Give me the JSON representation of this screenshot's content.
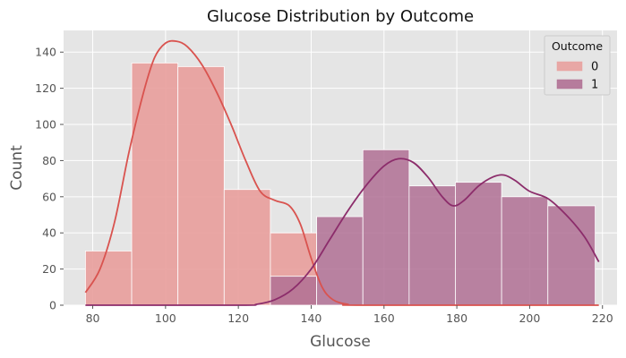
{
  "chart_data": {
    "type": "histogram",
    "title": "Glucose Distribution by Outcome",
    "xlabel": "Glucose",
    "ylabel": "Count",
    "xlim": [
      72,
      224
    ],
    "ylim": [
      0,
      152
    ],
    "xticks": [
      80,
      100,
      120,
      140,
      160,
      180,
      200,
      220
    ],
    "yticks": [
      0,
      20,
      40,
      60,
      80,
      100,
      120,
      140
    ],
    "grid": true,
    "legend": {
      "title": "Outcome",
      "position": "top-right"
    },
    "bin_edges": [
      78,
      90.7,
      103.4,
      116.1,
      128.8,
      141.5,
      154.2,
      166.9,
      179.6,
      192.3,
      205,
      218
    ],
    "series": [
      {
        "name": "0",
        "color": "#d9534f",
        "fill_color": "#e8a09d",
        "counts": [
          30,
          134,
          132,
          64,
          40,
          0,
          0,
          0,
          0,
          0,
          0
        ],
        "kde": [
          [
            78,
            7
          ],
          [
            82,
            20
          ],
          [
            86,
            46
          ],
          [
            90,
            85
          ],
          [
            94,
            118
          ],
          [
            97,
            137
          ],
          [
            100,
            145
          ],
          [
            103,
            146
          ],
          [
            106,
            143
          ],
          [
            110,
            133
          ],
          [
            114,
            118
          ],
          [
            118,
            100
          ],
          [
            122,
            80
          ],
          [
            126,
            63
          ],
          [
            130,
            58
          ],
          [
            134,
            55
          ],
          [
            137,
            45
          ],
          [
            140,
            26
          ],
          [
            143,
            10
          ],
          [
            146,
            3
          ],
          [
            150,
            0.5
          ],
          [
            155,
            0
          ],
          [
            219,
            0
          ]
        ]
      },
      {
        "name": "1",
        "color": "#8c2d6b",
        "fill_color": "#b07094",
        "counts": [
          0,
          0,
          0,
          0,
          16,
          49,
          86,
          66,
          68,
          60,
          55
        ],
        "kde": [
          [
            78,
            0
          ],
          [
            120,
            0
          ],
          [
            125,
            0.5
          ],
          [
            130,
            3
          ],
          [
            135,
            9
          ],
          [
            140,
            20
          ],
          [
            145,
            36
          ],
          [
            150,
            52
          ],
          [
            155,
            66
          ],
          [
            160,
            77
          ],
          [
            164,
            81
          ],
          [
            168,
            79
          ],
          [
            172,
            71
          ],
          [
            176,
            60
          ],
          [
            179,
            55
          ],
          [
            182,
            58
          ],
          [
            186,
            66
          ],
          [
            190,
            71
          ],
          [
            193,
            72
          ],
          [
            196,
            69
          ],
          [
            200,
            63
          ],
          [
            205,
            59
          ],
          [
            210,
            50
          ],
          [
            215,
            38
          ],
          [
            219,
            24
          ]
        ]
      }
    ]
  }
}
